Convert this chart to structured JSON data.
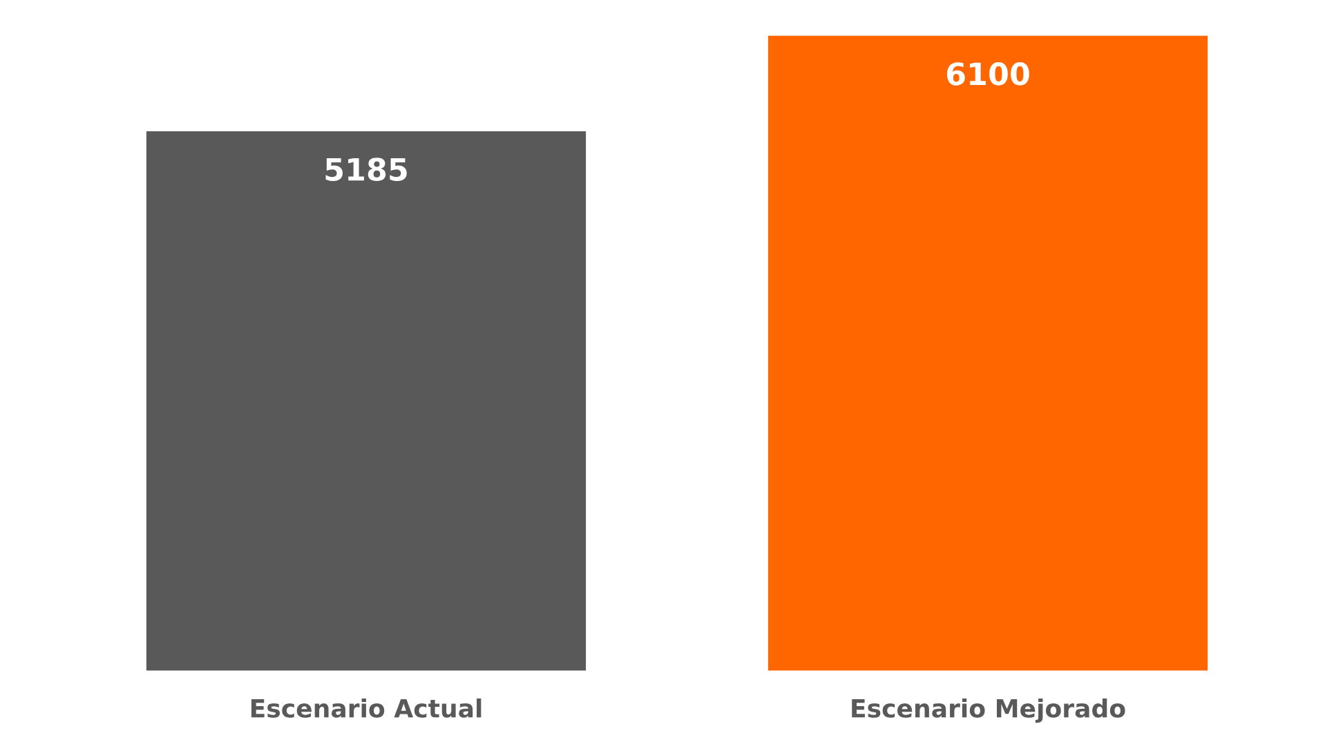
{
  "chart_data": {
    "type": "bar",
    "categories": [
      "Escenario Actual",
      "Escenario Mejorado"
    ],
    "values": [
      5185,
      6100
    ],
    "colors": [
      "#595959",
      "#ff6600"
    ],
    "tick_labels": "x",
    "data_labels": true,
    "grid": false,
    "legend": false
  }
}
